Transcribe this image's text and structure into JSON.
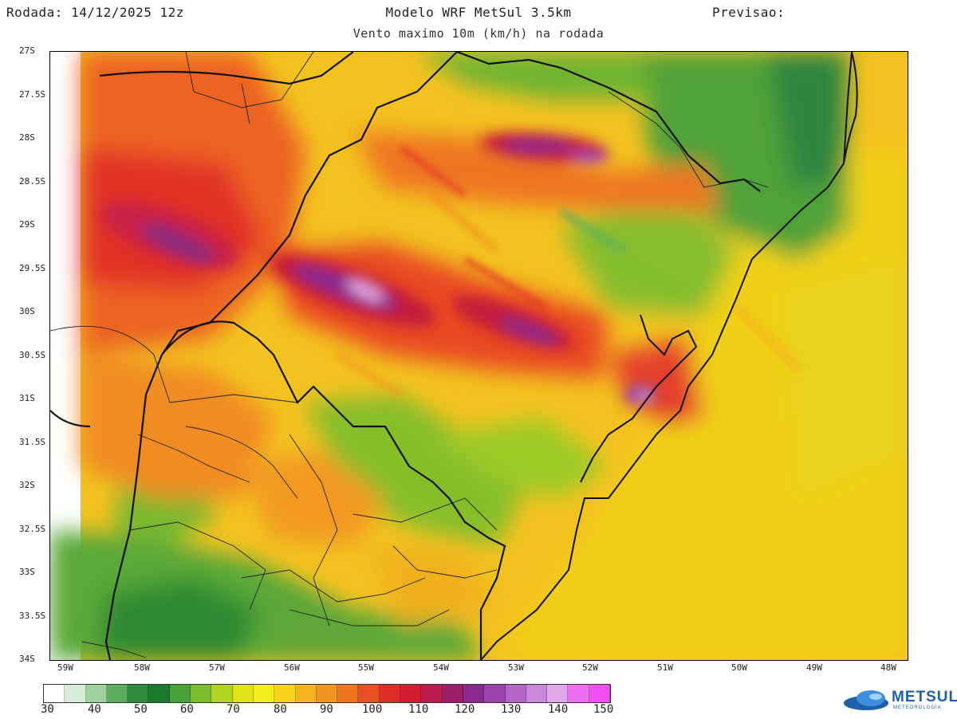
{
  "header": {
    "run": "Rodada: 14/12/2025 12z",
    "model": "Modelo WRF MetSul 3.5km",
    "forecast": "Previsao:",
    "subtitle": "Vento maximo 10m (km/h) na rodada"
  },
  "lat_labels": [
    "27S",
    "27.5S",
    "28S",
    "28.5S",
    "29S",
    "29.5S",
    "30S",
    "30.5S",
    "31S",
    "31.5S",
    "32S",
    "32.5S",
    "33S",
    "33.5S",
    "34S"
  ],
  "lon_labels": [
    "59W",
    "58W",
    "57W",
    "56W",
    "55W",
    "54W",
    "53W",
    "52W",
    "51W",
    "50W",
    "49W",
    "48W"
  ],
  "colorbar": {
    "labels": [
      "30",
      "40",
      "50",
      "60",
      "70",
      "80",
      "90",
      "100",
      "110",
      "120",
      "130",
      "140",
      "150"
    ],
    "colors": [
      "#ffffff",
      "#d6ecd6",
      "#9fd19f",
      "#5fae5f",
      "#2e8b3e",
      "#1c7a2c",
      "#48a235",
      "#7bbd2e",
      "#b1d31f",
      "#dfe41a",
      "#f6ec1c",
      "#f6d21c",
      "#f4b41e",
      "#f29520",
      "#ee7422",
      "#e84f22",
      "#e02c26",
      "#d21e33",
      "#b81d4c",
      "#9a1e69",
      "#8a2a8e",
      "#9c44ae",
      "#b466c6",
      "#cc88d8",
      "#e0a8e6",
      "#ef6ff2",
      "#f04ff0"
    ],
    "units": "km/h"
  },
  "logo": {
    "name": "METSUL",
    "tagline": "METEOROLOGIA"
  },
  "colors": {
    "frame": "#000000",
    "border_line": "#111111"
  }
}
